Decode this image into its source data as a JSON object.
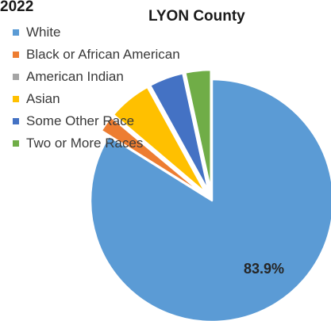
{
  "chart_data": {
    "type": "pie",
    "title": "LYON County",
    "subtitle": "2022",
    "categories": [
      "White",
      "Black or African American",
      "American Indian",
      "Asian",
      "Some Other Race",
      "Two or More Races"
    ],
    "values": [
      83.9,
      2.2,
      0.1,
      5.8,
      4.6,
      3.4
    ],
    "colors": [
      "#5b9bd5",
      "#ed7d31",
      "#a5a5a5",
      "#ffc000",
      "#4472c4",
      "#70ad47"
    ],
    "data_labels": [
      "83.9%",
      "",
      "",
      "",
      "",
      ""
    ],
    "legend_position": "top-left",
    "exploded_slices": [
      "Black or African American",
      "American Indian",
      "Asian",
      "Some Other Race",
      "Two or More Races"
    ],
    "start_angle_deg": 0,
    "direction": "clockwise"
  }
}
